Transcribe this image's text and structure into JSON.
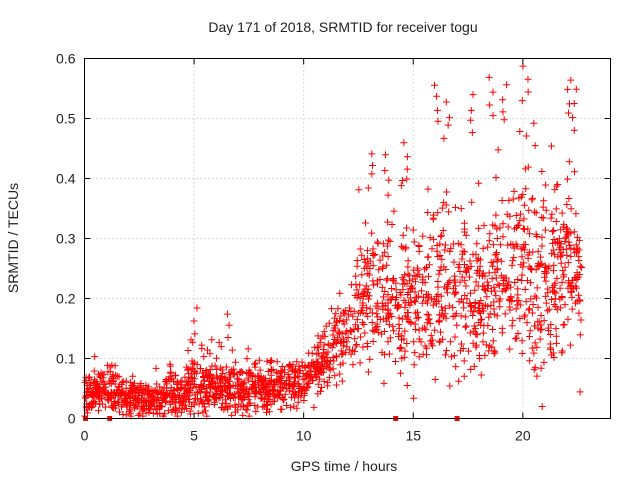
{
  "chart_data": {
    "type": "scatter",
    "title": "Day 171 of 2018, SRMTID for receiver togu",
    "xlabel": "GPS time / hours",
    "ylabel": "SRMTID / TECUs",
    "xlim": [
      0,
      24
    ],
    "ylim": [
      0,
      0.6
    ],
    "xticks": [
      "0",
      "5",
      "10",
      "15",
      "20"
    ],
    "yticks": [
      "0",
      "0.1",
      "0.2",
      "0.3",
      "0.4",
      "0.5",
      "0.6"
    ],
    "grid": true,
    "marker": "plus",
    "color": "#ff0000",
    "baseline_markers_x": [
      0.05,
      1.15,
      14.2,
      17.0
    ],
    "series": [
      {
        "name": "SRMTID",
        "envelope": [
          {
            "x": 0.0,
            "base": 0.04,
            "spread": 0.035
          },
          {
            "x": 1.0,
            "base": 0.045,
            "spread": 0.035
          },
          {
            "x": 2.0,
            "base": 0.035,
            "spread": 0.035
          },
          {
            "x": 3.0,
            "base": 0.03,
            "spread": 0.03
          },
          {
            "x": 4.0,
            "base": 0.04,
            "spread": 0.04
          },
          {
            "x": 5.0,
            "base": 0.055,
            "spread": 0.05
          },
          {
            "x": 6.0,
            "base": 0.05,
            "spread": 0.045
          },
          {
            "x": 7.0,
            "base": 0.045,
            "spread": 0.045
          },
          {
            "x": 8.0,
            "base": 0.05,
            "spread": 0.04
          },
          {
            "x": 9.0,
            "base": 0.055,
            "spread": 0.04
          },
          {
            "x": 10.0,
            "base": 0.065,
            "spread": 0.045
          },
          {
            "x": 11.0,
            "base": 0.1,
            "spread": 0.06
          },
          {
            "x": 12.0,
            "base": 0.15,
            "spread": 0.08
          },
          {
            "x": 13.0,
            "base": 0.2,
            "spread": 0.12
          },
          {
            "x": 14.0,
            "base": 0.19,
            "spread": 0.12
          },
          {
            "x": 15.0,
            "base": 0.19,
            "spread": 0.13
          },
          {
            "x": 16.0,
            "base": 0.22,
            "spread": 0.16
          },
          {
            "x": 17.0,
            "base": 0.2,
            "spread": 0.15
          },
          {
            "x": 18.0,
            "base": 0.2,
            "spread": 0.15
          },
          {
            "x": 19.0,
            "base": 0.23,
            "spread": 0.16
          },
          {
            "x": 20.0,
            "base": 0.24,
            "spread": 0.17
          },
          {
            "x": 21.0,
            "base": 0.22,
            "spread": 0.17
          },
          {
            "x": 22.0,
            "base": 0.26,
            "spread": 0.16
          },
          {
            "x": 22.7,
            "base": 0.2,
            "spread": 0.14
          }
        ],
        "x_range": [
          0.0,
          22.7
        ],
        "point_count": 2000,
        "peaks": [
          {
            "x": 5.0,
            "y": 0.19
          },
          {
            "x": 6.6,
            "y": 0.18
          },
          {
            "x": 13.0,
            "y": 0.45
          },
          {
            "x": 13.8,
            "y": 0.44
          },
          {
            "x": 14.6,
            "y": 0.46
          },
          {
            "x": 16.0,
            "y": 0.56
          },
          {
            "x": 16.5,
            "y": 0.53
          },
          {
            "x": 17.6,
            "y": 0.54
          },
          {
            "x": 18.6,
            "y": 0.57
          },
          {
            "x": 19.2,
            "y": 0.56
          },
          {
            "x": 20.1,
            "y": 0.59
          },
          {
            "x": 22.1,
            "y": 0.57
          },
          {
            "x": 22.4,
            "y": 0.55
          }
        ]
      }
    ]
  }
}
